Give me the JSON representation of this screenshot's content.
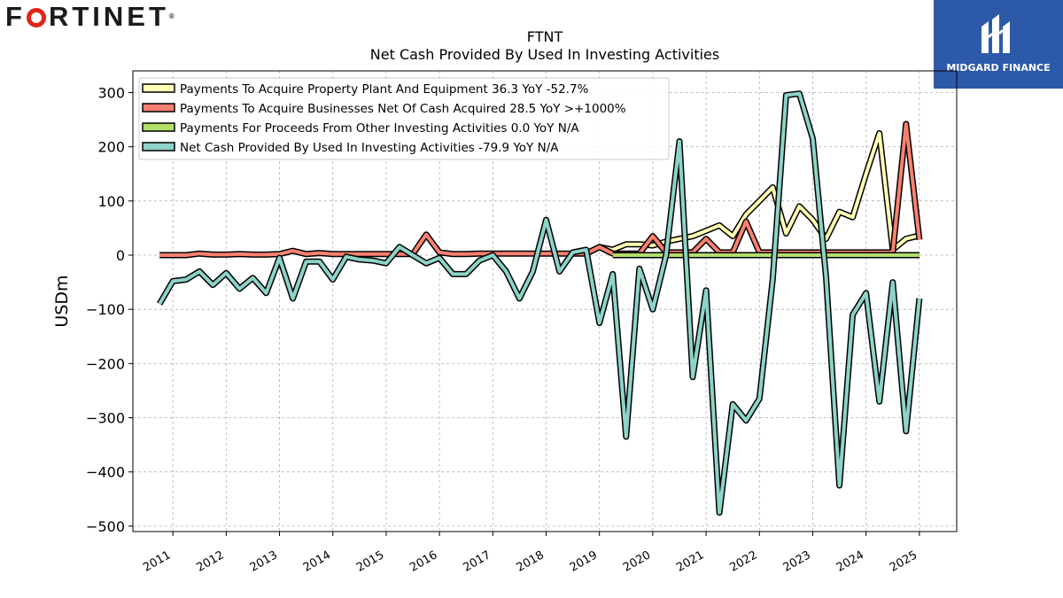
{
  "header": {
    "logo_text": "F",
    "logo_text_rest": "RTINET",
    "logo_mark": "®",
    "brand_name": "MIDGARD FINANCE",
    "brand_icon": "midgard-m-icon"
  },
  "chart_data": {
    "type": "line",
    "title": "FTNT",
    "subtitle": "Net Cash Provided By Used In Investing Activities",
    "xlabel": "",
    "ylabel": "USDm",
    "xlim": [
      2010.25,
      2025.7
    ],
    "ylim": [
      -510,
      340
    ],
    "xticks": [
      "2011",
      "2012",
      "2013",
      "2014",
      "2015",
      "2016",
      "2017",
      "2018",
      "2019",
      "2020",
      "2021",
      "2022",
      "2023",
      "2024",
      "2025"
    ],
    "yticks": [
      300,
      200,
      100,
      0,
      -100,
      -200,
      -300,
      -400,
      -500
    ],
    "ytick_labels": [
      "300",
      "200",
      "100",
      "0",
      "−100",
      "−200",
      "−300",
      "−400",
      "−500"
    ],
    "grid": true,
    "legend_position": "top-left",
    "series": [
      {
        "name": "Payments To Acquire Property Plant And Equipment  36.3 YoY -52.7%",
        "color": "#ffffb3",
        "x": [
          2019.0,
          2019.25,
          2019.5,
          2019.75,
          2020.0,
          2020.25,
          2020.5,
          2020.75,
          2021.0,
          2021.25,
          2021.5,
          2021.75,
          2022.0,
          2022.25,
          2022.5,
          2022.75,
          2023.0,
          2023.25,
          2023.5,
          2023.75,
          2024.0,
          2024.25,
          2024.5,
          2024.75,
          2025.0
        ],
        "values": [
          15,
          10,
          20,
          20,
          18,
          25,
          30,
          35,
          45,
          55,
          35,
          75,
          100,
          125,
          40,
          90,
          65,
          30,
          80,
          70,
          150,
          225,
          10,
          30,
          36.3
        ]
      },
      {
        "name": "Payments To Acquire Businesses Net Of Cash Acquired  28.5 YoY >+1000%",
        "color": "#fb8072",
        "x": [
          2010.75,
          2011.0,
          2011.25,
          2011.5,
          2011.75,
          2012.0,
          2012.25,
          2012.5,
          2012.75,
          2013.0,
          2013.25,
          2013.5,
          2013.75,
          2014.0,
          2014.25,
          2014.5,
          2014.75,
          2015.0,
          2015.25,
          2015.5,
          2015.75,
          2016.0,
          2016.25,
          2016.5,
          2016.75,
          2017.0,
          2017.25,
          2017.5,
          2017.75,
          2018.0,
          2018.25,
          2018.5,
          2018.75,
          2019.0,
          2019.25,
          2019.5,
          2019.75,
          2020.0,
          2020.25,
          2020.5,
          2020.75,
          2021.0,
          2021.25,
          2021.5,
          2021.75,
          2022.0,
          2022.25,
          2022.5,
          2022.75,
          2023.0,
          2023.25,
          2023.5,
          2023.75,
          2024.0,
          2024.25,
          2024.5,
          2024.75,
          2025.0
        ],
        "values": [
          0,
          0,
          0,
          3,
          1,
          1,
          2,
          1,
          1,
          2,
          8,
          2,
          4,
          2,
          2,
          2,
          2,
          2,
          2,
          2,
          38,
          5,
          2,
          2,
          3,
          3,
          3,
          3,
          3,
          3,
          3,
          3,
          3,
          15,
          3,
          3,
          3,
          35,
          5,
          5,
          5,
          30,
          5,
          5,
          62,
          5,
          5,
          5,
          5,
          5,
          5,
          5,
          5,
          5,
          5,
          5,
          242,
          28.5
        ]
      },
      {
        "name": "Payments For Proceeds From Other Investing Activities  0.0 YoY N/A",
        "color": "#b3de69",
        "x": [
          2019.25,
          2019.5,
          2019.75,
          2020.0,
          2020.25,
          2020.5,
          2020.75,
          2021.0,
          2021.25,
          2021.5,
          2021.75,
          2022.0,
          2022.25,
          2022.5,
          2022.75,
          2023.0,
          2023.25,
          2023.5,
          2023.75,
          2024.0,
          2024.25,
          2024.5,
          2024.75,
          2025.0
        ],
        "values": [
          0,
          0,
          0,
          0,
          0,
          0,
          0,
          0,
          0,
          0,
          0,
          0,
          0,
          0,
          0,
          0,
          0,
          0,
          0,
          0,
          0,
          0,
          0,
          0.0
        ]
      },
      {
        "name": "Net Cash Provided By Used In Investing Activities  -79.9 YoY N/A",
        "color": "#8dd3c7",
        "x": [
          2010.75,
          2011.0,
          2011.25,
          2011.5,
          2011.75,
          2012.0,
          2012.25,
          2012.5,
          2012.75,
          2013.0,
          2013.25,
          2013.5,
          2013.75,
          2014.0,
          2014.25,
          2014.5,
          2014.75,
          2015.0,
          2015.25,
          2015.5,
          2015.75,
          2016.0,
          2016.25,
          2016.5,
          2016.75,
          2017.0,
          2017.25,
          2017.5,
          2017.75,
          2018.0,
          2018.25,
          2018.5,
          2018.75,
          2019.0,
          2019.25,
          2019.5,
          2019.75,
          2020.0,
          2020.25,
          2020.5,
          2020.75,
          2021.0,
          2021.25,
          2021.5,
          2021.75,
          2022.0,
          2022.25,
          2022.5,
          2022.75,
          2023.0,
          2023.25,
          2023.5,
          2023.75,
          2024.0,
          2024.25,
          2024.5,
          2024.75,
          2025.0
        ],
        "values": [
          -90,
          -48,
          -45,
          -30,
          -55,
          -33,
          -62,
          -42,
          -70,
          -5,
          -80,
          -12,
          -12,
          -45,
          -3,
          -8,
          -10,
          -15,
          15,
          0,
          -15,
          -5,
          -35,
          -35,
          -10,
          0,
          -30,
          -80,
          -30,
          65,
          -30,
          5,
          10,
          -125,
          -35,
          -335,
          -25,
          -100,
          0,
          210,
          -225,
          -65,
          -475,
          -275,
          -305,
          -265,
          -45,
          295,
          298,
          215,
          -40,
          -425,
          -110,
          -70,
          -270,
          -50,
          -325,
          -79.9
        ]
      }
    ]
  }
}
